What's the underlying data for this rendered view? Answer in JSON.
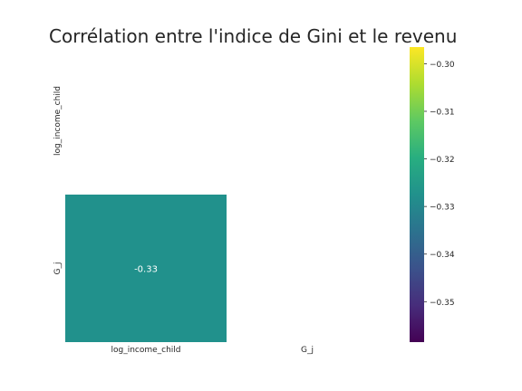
{
  "chart_data": {
    "type": "heatmap",
    "title": "Corrélation entre l'indice de Gini et le revenu",
    "x_labels": [
      "log_income_child",
      "G_j"
    ],
    "y_labels": [
      "log_income_child",
      "G_j"
    ],
    "cells": [
      {
        "row": 1,
        "col": 0,
        "value": -0.33,
        "label": "-0.33"
      }
    ],
    "mask": "upper-triangle",
    "colormap": "viridis",
    "colorbar": {
      "range": [
        -0.3585,
        -0.2965
      ],
      "ticks": [
        -0.35,
        -0.34,
        -0.33,
        -0.32,
        -0.31,
        -0.3
      ],
      "tick_labels": [
        "−0.35",
        "−0.34",
        "−0.33",
        "−0.32",
        "−0.31",
        "−0.30"
      ]
    },
    "colors": {
      "cell": "#21918c",
      "cell_text": "#ffffff",
      "text": "#262626"
    }
  }
}
